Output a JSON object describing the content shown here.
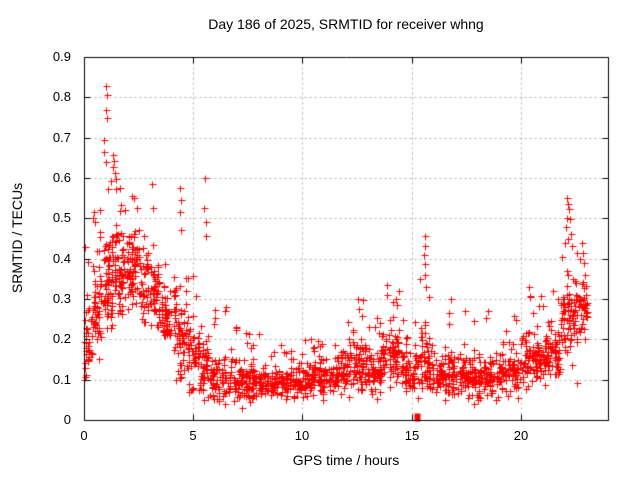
{
  "chart_data": {
    "type": "scatter",
    "title": "Day 186 of 2025, SRMTID for receiver whng",
    "xlabel": "GPS time / hours",
    "ylabel": "SRMTID / TECUs",
    "xlim": [
      0,
      24
    ],
    "ylim": [
      0,
      0.9
    ],
    "xticks": [
      0,
      5,
      10,
      15,
      20
    ],
    "xtick_labels": [
      "0",
      "5",
      "10",
      "15",
      "20"
    ],
    "yticks": [
      0,
      0.1,
      0.2,
      0.3,
      0.4,
      0.5,
      0.6,
      0.7,
      0.8,
      0.9
    ],
    "ytick_labels": [
      "0",
      "0.1",
      "0.2",
      "0.3",
      "0.4",
      "0.5",
      "0.6",
      "0.7",
      "0.8",
      "0.9"
    ],
    "grid": {
      "show": true,
      "color": "#b0b0b0",
      "dash": [
        2,
        3
      ]
    },
    "legend": "none",
    "axis_color": "#000000",
    "marker": {
      "shape": "plus",
      "color": "#ff0000",
      "size": 7
    },
    "seed": 186,
    "x_quantum_hours": 0.05,
    "band_format": [
      "t0_hours",
      "t1_hours",
      "count",
      "y_min",
      "y_mode",
      "y_max"
    ],
    "point_bands": [
      [
        0.0,
        0.4,
        40,
        0.1,
        0.2,
        0.44
      ],
      [
        0.4,
        0.9,
        55,
        0.13,
        0.27,
        0.52
      ],
      [
        0.9,
        1.3,
        55,
        0.15,
        0.34,
        0.6
      ],
      [
        1.3,
        1.8,
        65,
        0.17,
        0.37,
        0.62
      ],
      [
        1.8,
        2.6,
        85,
        0.17,
        0.37,
        0.55
      ],
      [
        2.6,
        3.4,
        80,
        0.15,
        0.32,
        0.48
      ],
      [
        3.4,
        4.2,
        70,
        0.13,
        0.26,
        0.44
      ],
      [
        4.2,
        4.7,
        50,
        0.1,
        0.2,
        0.5
      ],
      [
        4.7,
        5.3,
        50,
        0.07,
        0.15,
        0.4
      ],
      [
        5.3,
        5.8,
        45,
        0.05,
        0.12,
        0.35
      ],
      [
        5.8,
        6.5,
        60,
        0.04,
        0.1,
        0.28
      ],
      [
        6.5,
        8.0,
        115,
        0.03,
        0.09,
        0.24
      ],
      [
        8.0,
        9.5,
        125,
        0.03,
        0.09,
        0.18
      ],
      [
        9.5,
        11.5,
        160,
        0.04,
        0.1,
        0.2
      ],
      [
        11.5,
        12.2,
        60,
        0.05,
        0.12,
        0.26
      ],
      [
        12.2,
        13.0,
        70,
        0.06,
        0.14,
        0.3
      ],
      [
        13.0,
        13.6,
        60,
        0.05,
        0.12,
        0.26
      ],
      [
        13.6,
        14.6,
        85,
        0.06,
        0.16,
        0.34
      ],
      [
        14.6,
        15.35,
        60,
        0.05,
        0.12,
        0.28
      ],
      [
        15.4,
        15.8,
        40,
        0.07,
        0.16,
        0.4
      ],
      [
        15.8,
        16.5,
        55,
        0.05,
        0.11,
        0.24
      ],
      [
        16.5,
        17.5,
        85,
        0.05,
        0.11,
        0.28
      ],
      [
        17.5,
        19.0,
        115,
        0.04,
        0.1,
        0.26
      ],
      [
        19.0,
        20.0,
        85,
        0.05,
        0.12,
        0.26
      ],
      [
        20.0,
        21.0,
        85,
        0.07,
        0.15,
        0.31
      ],
      [
        21.0,
        21.8,
        75,
        0.08,
        0.17,
        0.34
      ],
      [
        21.8,
        22.4,
        55,
        0.12,
        0.24,
        0.46
      ],
      [
        22.4,
        23.05,
        60,
        0.14,
        0.27,
        0.42
      ]
    ],
    "outlier_points": [
      [
        1.02,
        0.828
      ],
      [
        1.06,
        0.806
      ],
      [
        1.02,
        0.768
      ],
      [
        1.05,
        0.748
      ],
      [
        0.93,
        0.694
      ],
      [
        0.9,
        0.665
      ],
      [
        1.0,
        0.64
      ],
      [
        1.35,
        0.657
      ],
      [
        1.37,
        0.643
      ],
      [
        1.34,
        0.628
      ],
      [
        1.4,
        0.612
      ],
      [
        1.45,
        0.598
      ],
      [
        0.45,
        0.515
      ],
      [
        0.5,
        0.49
      ],
      [
        1.65,
        0.575
      ],
      [
        2.2,
        0.555
      ],
      [
        1.9,
        0.52
      ],
      [
        3.1,
        0.585
      ],
      [
        3.15,
        0.525
      ],
      [
        4.4,
        0.575
      ],
      [
        4.42,
        0.545
      ],
      [
        4.38,
        0.515
      ],
      [
        4.45,
        0.47
      ],
      [
        5.55,
        0.6
      ],
      [
        5.5,
        0.525
      ],
      [
        5.58,
        0.49
      ],
      [
        5.6,
        0.455
      ],
      [
        6.5,
        0.28
      ],
      [
        7.4,
        0.215
      ],
      [
        9.0,
        0.185
      ],
      [
        10.4,
        0.2
      ],
      [
        12.55,
        0.3
      ],
      [
        12.6,
        0.275
      ],
      [
        13.9,
        0.31
      ],
      [
        14.3,
        0.3
      ],
      [
        14.35,
        0.285
      ],
      [
        15.6,
        0.455
      ],
      [
        15.62,
        0.432
      ],
      [
        15.58,
        0.41
      ],
      [
        15.6,
        0.388
      ],
      [
        15.63,
        0.36
      ],
      [
        15.65,
        0.33
      ],
      [
        16.8,
        0.3
      ],
      [
        18.5,
        0.27
      ],
      [
        20.4,
        0.33
      ],
      [
        20.45,
        0.305
      ],
      [
        22.1,
        0.55
      ],
      [
        22.15,
        0.535
      ],
      [
        22.2,
        0.522
      ],
      [
        22.12,
        0.502
      ],
      [
        22.25,
        0.498
      ],
      [
        22.08,
        0.478
      ],
      [
        22.3,
        0.462
      ],
      [
        22.18,
        0.448
      ],
      [
        22.05,
        0.44
      ],
      [
        22.35,
        0.432
      ],
      [
        22.6,
        0.092
      ],
      [
        22.8,
        0.44
      ],
      [
        22.85,
        0.415
      ],
      [
        22.9,
        0.39
      ]
    ],
    "zero_marker": {
      "style": "filled-square",
      "x": 15.27,
      "y": 0.0
    }
  }
}
